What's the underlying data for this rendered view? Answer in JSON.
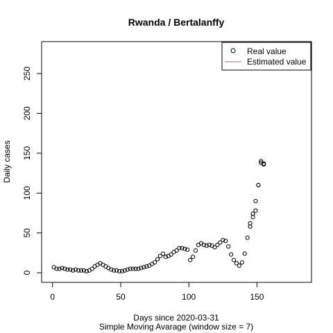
{
  "chart_data": {
    "type": "scatter",
    "title": "Rwanda / Bertalanffy",
    "xlabel": "Days since 2020-03-31",
    "sublabel": "Simple Moving Avarage (window size = 7)",
    "ylabel": "Daily cases",
    "xlim": [
      -8,
      190
    ],
    "ylim": [
      -12,
      290
    ],
    "xticks": [
      0,
      50,
      100,
      150
    ],
    "yticks": [
      0,
      50,
      100,
      150,
      200,
      250
    ],
    "grid": false,
    "legend_position": "top-right",
    "series": [
      {
        "name": "Real value",
        "marker": "open-circle",
        "color": "#000000",
        "x": [
          1,
          3,
          5,
          7,
          9,
          11,
          13,
          15,
          17,
          19,
          21,
          23,
          25,
          27,
          29,
          31,
          33,
          35,
          37,
          39,
          41,
          43,
          45,
          47,
          49,
          51,
          53,
          55,
          57,
          59,
          61,
          63,
          65,
          67,
          69,
          71,
          73,
          75,
          77,
          79,
          81,
          83,
          85,
          87,
          89,
          91,
          93,
          95,
          97,
          99,
          101,
          103,
          105,
          107,
          109,
          111,
          113,
          115,
          117,
          119,
          121,
          123,
          125,
          127,
          129,
          131,
          133,
          135,
          137,
          139,
          141,
          143,
          145,
          147,
          149,
          151,
          153,
          155
        ],
        "y": [
          7,
          5,
          5,
          6,
          5,
          4,
          4,
          3,
          4,
          3,
          3,
          3,
          2,
          3,
          5,
          8,
          10,
          12,
          10,
          8,
          6,
          4,
          3,
          3,
          2,
          2,
          3,
          4,
          5,
          5,
          5,
          5,
          6,
          7,
          8,
          9,
          11,
          13,
          17,
          21,
          24,
          20,
          21,
          23,
          26,
          28,
          31,
          31,
          30,
          29,
          16,
          20,
          28,
          35,
          37,
          35,
          34,
          35,
          34,
          32,
          35,
          38,
          41,
          40,
          33,
          23,
          16,
          12,
          9,
          13,
          24,
          44,
          58,
          70,
          90,
          110,
          138,
          136
        ],
        "x2": [
          145,
          147,
          149,
          151,
          153,
          155
        ],
        "y2": [
          62,
          74,
          78,
          110,
          140,
          137
        ]
      },
      {
        "name": "Estimated value",
        "marker": "line",
        "color": "#b05fa8",
        "x": [],
        "y": []
      }
    ]
  }
}
